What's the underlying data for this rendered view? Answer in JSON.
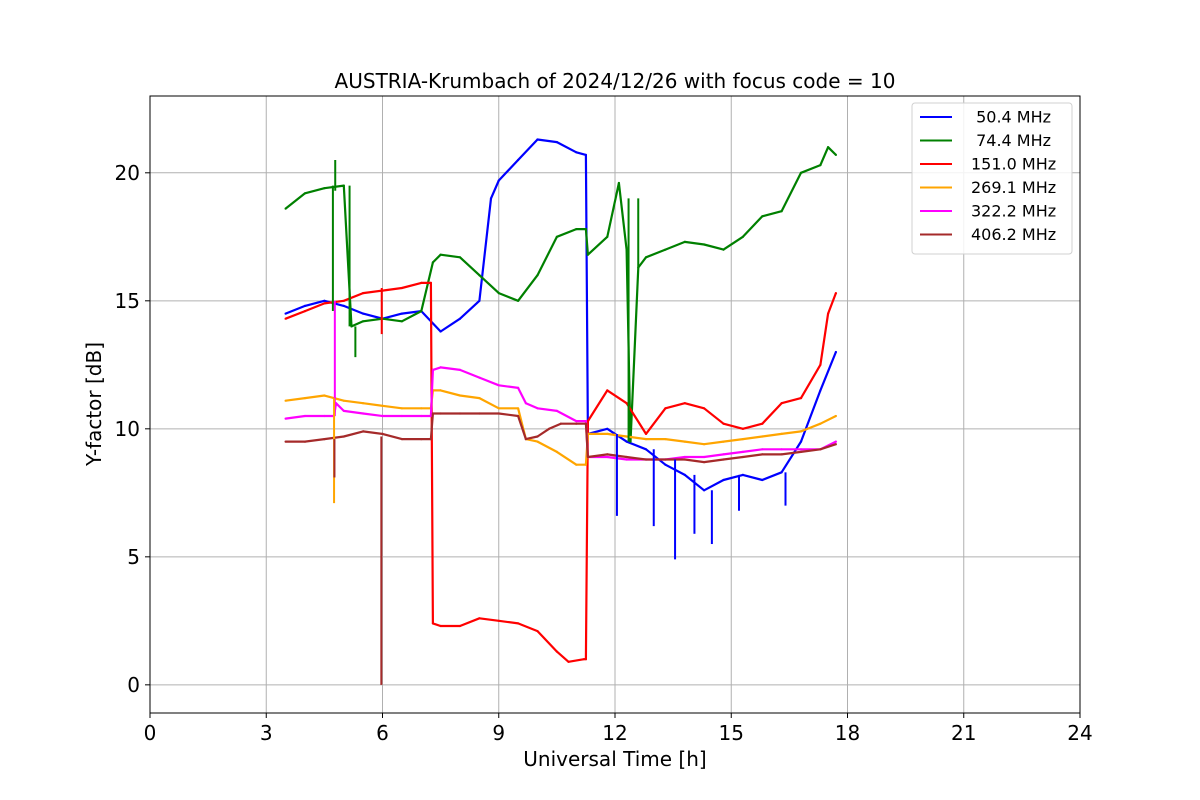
{
  "chart_data": {
    "type": "line",
    "title": "AUSTRIA-Krumbach of 2024/12/26 with focus code = 10",
    "xlabel": "Universal Time [h]",
    "ylabel": "Y-factor [dB]",
    "xlim": [
      0,
      24
    ],
    "ylim": [
      -1.1,
      23
    ],
    "xticks": [
      0,
      3,
      6,
      9,
      12,
      15,
      18,
      21,
      24
    ],
    "yticks": [
      0,
      5,
      10,
      15,
      20
    ],
    "grid": true,
    "legend_position": "top-right",
    "series": [
      {
        "name": " 50.4 MHz",
        "color": "#0000ff",
        "x": [
          3.5,
          4.0,
          4.5,
          5.0,
          5.5,
          6.0,
          6.5,
          7.0,
          7.5,
          8.0,
          8.5,
          8.8,
          9.0,
          9.5,
          10.0,
          10.5,
          11.0,
          11.25,
          11.3,
          11.8,
          12.3,
          12.8,
          13.3,
          13.8,
          14.3,
          14.8,
          15.3,
          15.8,
          16.3,
          16.8,
          17.3,
          17.7
        ],
        "y": [
          14.5,
          14.8,
          15.0,
          14.8,
          14.5,
          14.3,
          14.5,
          14.6,
          13.8,
          14.3,
          15.0,
          19.0,
          19.7,
          20.5,
          21.3,
          21.2,
          20.8,
          20.7,
          9.8,
          10.0,
          9.5,
          9.2,
          8.6,
          8.2,
          7.6,
          8.0,
          8.2,
          8.0,
          8.3,
          9.5,
          11.5,
          13.0
        ]
      },
      {
        "name": " 74.4 MHz",
        "color": "#008000",
        "x": [
          3.5,
          4.0,
          4.5,
          5.0,
          5.2,
          5.5,
          6.0,
          6.5,
          7.0,
          7.3,
          7.5,
          8.0,
          8.5,
          9.0,
          9.5,
          10.0,
          10.5,
          11.0,
          11.25,
          11.3,
          11.8,
          12.1,
          12.3,
          12.4,
          12.6,
          12.8,
          13.3,
          13.8,
          14.3,
          14.8,
          15.3,
          15.8,
          16.3,
          16.8,
          17.3,
          17.5,
          17.7
        ],
        "y": [
          18.6,
          19.2,
          19.4,
          19.5,
          14.0,
          14.2,
          14.3,
          14.2,
          14.6,
          16.5,
          16.8,
          16.7,
          16.0,
          15.3,
          15.0,
          16.0,
          17.5,
          17.8,
          17.8,
          16.8,
          17.5,
          19.6,
          17.0,
          9.5,
          16.3,
          16.7,
          17.0,
          17.3,
          17.2,
          17.0,
          17.5,
          18.3,
          18.5,
          20.0,
          20.3,
          21.0,
          20.7
        ]
      },
      {
        "name": "151.0 MHz",
        "color": "#ff0000",
        "x": [
          3.5,
          4.0,
          4.5,
          5.0,
          5.5,
          6.0,
          6.5,
          7.0,
          7.25,
          7.3,
          7.5,
          8.0,
          8.5,
          9.0,
          9.5,
          10.0,
          10.5,
          10.8,
          11.2,
          11.25,
          11.3,
          11.8,
          12.3,
          12.8,
          13.3,
          13.8,
          14.3,
          14.8,
          15.3,
          15.8,
          16.3,
          16.8,
          17.3,
          17.5,
          17.7
        ],
        "y": [
          14.3,
          14.6,
          14.9,
          15.0,
          15.3,
          15.4,
          15.5,
          15.7,
          15.7,
          2.4,
          2.3,
          2.3,
          2.6,
          2.5,
          2.4,
          2.1,
          1.3,
          0.9,
          1.0,
          1.0,
          10.3,
          11.5,
          11.0,
          9.8,
          10.8,
          11.0,
          10.8,
          10.2,
          10.0,
          10.2,
          11.0,
          11.2,
          12.5,
          14.5,
          15.3
        ]
      },
      {
        "name": "269.1 MHz",
        "color": "#ffa500",
        "x": [
          3.5,
          4.0,
          4.5,
          5.0,
          5.5,
          6.0,
          6.5,
          7.0,
          7.25,
          7.3,
          7.5,
          8.0,
          8.5,
          9.0,
          9.5,
          9.7,
          10.0,
          10.5,
          11.0,
          11.25,
          11.3,
          11.8,
          12.3,
          12.8,
          13.3,
          13.8,
          14.3,
          14.8,
          15.3,
          15.8,
          16.3,
          16.8,
          17.3,
          17.7
        ],
        "y": [
          11.1,
          11.2,
          11.3,
          11.1,
          11.0,
          10.9,
          10.8,
          10.8,
          10.8,
          11.5,
          11.5,
          11.3,
          11.2,
          10.8,
          10.8,
          9.6,
          9.5,
          9.1,
          8.6,
          8.6,
          9.8,
          9.8,
          9.7,
          9.6,
          9.6,
          9.5,
          9.4,
          9.5,
          9.6,
          9.7,
          9.8,
          9.9,
          10.2,
          10.5
        ]
      },
      {
        "name": "322.2 MHz",
        "color": "#ff00ff",
        "x": [
          3.5,
          4.0,
          4.5,
          4.75,
          4.8,
          5.0,
          5.5,
          6.0,
          6.5,
          7.0,
          7.25,
          7.3,
          7.5,
          8.0,
          8.5,
          9.0,
          9.5,
          9.7,
          10.0,
          10.5,
          11.0,
          11.25,
          11.3,
          11.8,
          12.3,
          12.8,
          13.3,
          13.8,
          14.3,
          14.8,
          15.3,
          15.8,
          16.3,
          16.8,
          17.3,
          17.7
        ],
        "y": [
          10.4,
          10.5,
          10.5,
          10.5,
          11.0,
          10.7,
          10.6,
          10.5,
          10.5,
          10.5,
          10.5,
          12.3,
          12.4,
          12.3,
          12.0,
          11.7,
          11.6,
          11.0,
          10.8,
          10.7,
          10.3,
          10.3,
          8.9,
          8.9,
          8.8,
          8.8,
          8.8,
          8.9,
          8.9,
          9.0,
          9.1,
          9.2,
          9.2,
          9.2,
          9.2,
          9.5
        ]
      },
      {
        "name": "406.2 MHz",
        "color": "#a52a2a",
        "x": [
          3.5,
          4.0,
          4.5,
          5.0,
          5.5,
          6.0,
          6.5,
          7.0,
          7.25,
          7.3,
          7.5,
          8.0,
          8.5,
          9.0,
          9.5,
          9.7,
          10.0,
          10.3,
          10.6,
          11.0,
          11.25,
          11.3,
          11.8,
          12.3,
          12.8,
          13.3,
          13.8,
          14.3,
          14.8,
          15.3,
          15.8,
          16.3,
          16.8,
          17.3,
          17.7
        ],
        "y": [
          9.5,
          9.5,
          9.6,
          9.7,
          9.9,
          9.8,
          9.6,
          9.6,
          9.6,
          10.6,
          10.6,
          10.6,
          10.6,
          10.6,
          10.5,
          9.6,
          9.7,
          10.0,
          10.2,
          10.2,
          10.2,
          8.9,
          9.0,
          8.9,
          8.8,
          8.8,
          8.8,
          8.7,
          8.8,
          8.9,
          9.0,
          9.0,
          9.1,
          9.2,
          9.4
        ]
      }
    ],
    "spikes": [
      {
        "series": "406.2 MHz",
        "color": "#a52a2a",
        "x": 5.97,
        "y_from": 9.7,
        "y_to": 0.0
      },
      {
        "series": "151.0 MHz",
        "color": "#ff0000",
        "x": 5.98,
        "y_from": 15.5,
        "y_to": 13.7
      },
      {
        "series": " 74.4 MHz",
        "color": "#008000",
        "x": 4.72,
        "y_from": 19.5,
        "y_to": 14.6
      },
      {
        "series": " 74.4 MHz",
        "color": "#008000",
        "x": 4.78,
        "y_from": 19.3,
        "y_to": 20.5
      },
      {
        "series": " 74.4 MHz",
        "color": "#008000",
        "x": 5.15,
        "y_from": 19.5,
        "y_to": 14.0
      },
      {
        "series": " 74.4 MHz",
        "color": "#008000",
        "x": 5.3,
        "y_from": 14.0,
        "y_to": 12.8
      },
      {
        "series": "322.2 MHz",
        "color": "#ff00ff",
        "x": 4.77,
        "y_from": 10.5,
        "y_to": 15.0
      },
      {
        "series": "269.1 MHz",
        "color": "#ffa500",
        "x": 4.75,
        "y_from": 11.2,
        "y_to": 7.1
      },
      {
        "series": "406.2 MHz",
        "color": "#a52a2a",
        "x": 4.76,
        "y_from": 9.6,
        "y_to": 8.1
      },
      {
        "series": " 74.4 MHz",
        "color": "#008000",
        "x": 12.35,
        "y_from": 19.0,
        "y_to": 9.5
      },
      {
        "series": " 74.4 MHz",
        "color": "#008000",
        "x": 12.6,
        "y_from": 16.3,
        "y_to": 19.0
      },
      {
        "series": " 50.4 MHz",
        "color": "#0000ff",
        "x": 12.05,
        "y_from": 9.8,
        "y_to": 6.6
      },
      {
        "series": " 50.4 MHz",
        "color": "#0000ff",
        "x": 13.0,
        "y_from": 9.2,
        "y_to": 6.2
      },
      {
        "series": " 50.4 MHz",
        "color": "#0000ff",
        "x": 13.55,
        "y_from": 8.8,
        "y_to": 4.9
      },
      {
        "series": " 50.4 MHz",
        "color": "#0000ff",
        "x": 14.05,
        "y_from": 8.2,
        "y_to": 5.9
      },
      {
        "series": " 50.4 MHz",
        "color": "#0000ff",
        "x": 14.5,
        "y_from": 7.6,
        "y_to": 5.5
      },
      {
        "series": " 50.4 MHz",
        "color": "#0000ff",
        "x": 15.2,
        "y_from": 8.2,
        "y_to": 6.8
      },
      {
        "series": " 50.4 MHz",
        "color": "#0000ff",
        "x": 16.4,
        "y_from": 8.3,
        "y_to": 7.0
      }
    ]
  }
}
